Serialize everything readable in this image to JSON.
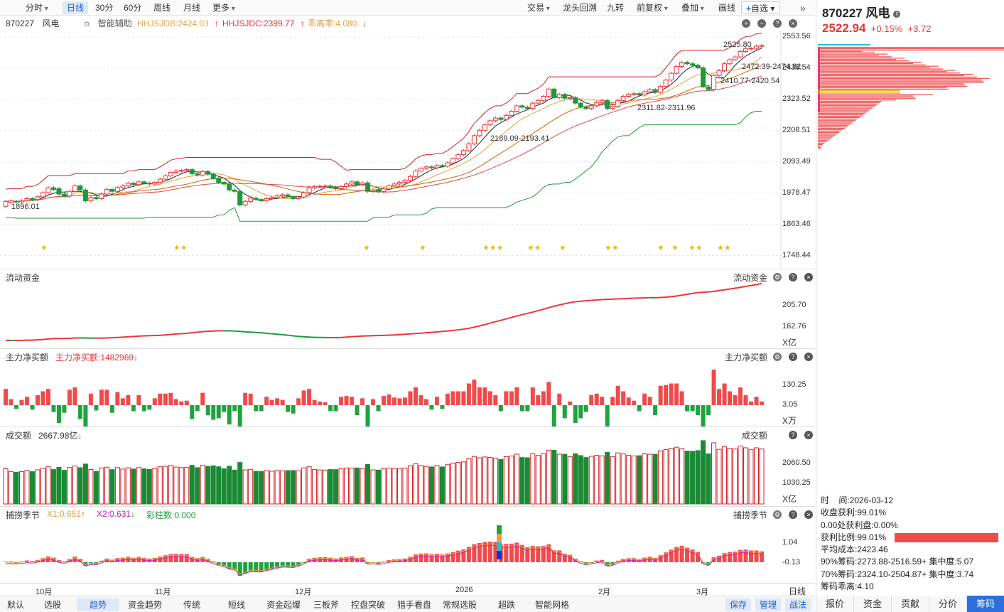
{
  "toolbar": {
    "left": [
      "分时",
      "日线",
      "30分",
      "60分",
      "周线",
      "月线",
      "更多"
    ],
    "selected": "日线",
    "right": [
      "交易",
      "龙头回溯",
      "九转",
      "前复权",
      "叠加",
      "画线",
      "自选"
    ]
  },
  "stock": {
    "code": "870227",
    "name": "风电",
    "price": "2522.94",
    "change_pct": "+0.15%",
    "change": "+3.72"
  },
  "indicator": {
    "mode": "智能辅助",
    "hhjsjdb": "HHJSJDB:2424.03",
    "hhjsjdc": "HHJSJDC:2399.77",
    "ratio": "乖离率:4.080"
  },
  "main_chart": {
    "ylabels": [
      "2553.56",
      "2438.54",
      "2323.52",
      "2208.51",
      "2093.49",
      "1978.47",
      "1863.46",
      "1748.44"
    ],
    "annotations": {
      "high": "2525.80",
      "low": "1896.01",
      "a1": "2472.39-2474.82",
      "a2": "2410.77-2420.54",
      "a3": "2311.82-2311.96",
      "a4": "2189.09-2193.41"
    },
    "ylim": [
      1700,
      2580
    ],
    "candles": [
      [
        1930,
        1948
      ],
      [
        1945,
        1950
      ],
      [
        1948,
        1946
      ],
      [
        1946,
        1950
      ],
      [
        1950,
        1958
      ],
      [
        1958,
        1955
      ],
      [
        1955,
        1965
      ],
      [
        1965,
        1980
      ],
      [
        1980,
        1998
      ],
      [
        1998,
        1992
      ],
      [
        1995,
        1975
      ],
      [
        1975,
        1968
      ],
      [
        1968,
        1985
      ],
      [
        1985,
        2005
      ],
      [
        2005,
        1990
      ],
      [
        1990,
        1950
      ],
      [
        1950,
        1962
      ],
      [
        1962,
        1958
      ],
      [
        1958,
        1975
      ],
      [
        1975,
        1992
      ],
      [
        1992,
        1985
      ],
      [
        1985,
        1999
      ],
      [
        1999,
        2005
      ],
      [
        2005,
        2015
      ],
      [
        2015,
        2010
      ],
      [
        2010,
        2020
      ],
      [
        2020,
        2015
      ],
      [
        2015,
        2012
      ],
      [
        2012,
        2018
      ],
      [
        2018,
        2030
      ],
      [
        2030,
        2042
      ],
      [
        2042,
        2055
      ],
      [
        2055,
        2060
      ],
      [
        2060,
        2062
      ],
      [
        2062,
        2065
      ],
      [
        2065,
        2050
      ],
      [
        2050,
        2045
      ],
      [
        2045,
        2058
      ],
      [
        2058,
        2048
      ],
      [
        2048,
        2032
      ],
      [
        2032,
        2018
      ],
      [
        2018,
        2012
      ],
      [
        2012,
        1990
      ],
      [
        1990,
        1985
      ],
      [
        1985,
        1935
      ],
      [
        1935,
        1948
      ],
      [
        1948,
        1960
      ],
      [
        1960,
        1955
      ],
      [
        1955,
        1950
      ],
      [
        1950,
        1958
      ],
      [
        1958,
        1962
      ],
      [
        1962,
        1968
      ],
      [
        1968,
        1972
      ],
      [
        1972,
        1966
      ],
      [
        1966,
        1958
      ],
      [
        1958,
        1964
      ],
      [
        1964,
        1980
      ],
      [
        1980,
        1998
      ],
      [
        1998,
        2002
      ],
      [
        2002,
        2004
      ],
      [
        2004,
        2005
      ],
      [
        2005,
        2000
      ],
      [
        2000,
        1995
      ],
      [
        1995,
        2003
      ],
      [
        2003,
        2012
      ],
      [
        2012,
        2020
      ],
      [
        2020,
        2010
      ],
      [
        2010,
        2016
      ],
      [
        2016,
        1985
      ],
      [
        1985,
        1990
      ],
      [
        1990,
        1985
      ],
      [
        1985,
        1994
      ],
      [
        1994,
        2005
      ],
      [
        2005,
        2012
      ],
      [
        2012,
        2018
      ],
      [
        2018,
        2025
      ],
      [
        2025,
        2040
      ],
      [
        2040,
        2060
      ],
      [
        2060,
        2070
      ],
      [
        2070,
        2075
      ],
      [
        2075,
        2072
      ],
      [
        2072,
        2080
      ],
      [
        2080,
        2078
      ],
      [
        2078,
        2090
      ],
      [
        2090,
        2105
      ],
      [
        2105,
        2120
      ],
      [
        2120,
        2135
      ],
      [
        2135,
        2160
      ],
      [
        2160,
        2190
      ],
      [
        2190,
        2210
      ],
      [
        2210,
        2230
      ],
      [
        2230,
        2245
      ],
      [
        2245,
        2255
      ],
      [
        2255,
        2250
      ],
      [
        2250,
        2265
      ],
      [
        2265,
        2280
      ],
      [
        2280,
        2300
      ],
      [
        2300,
        2295
      ],
      [
        2295,
        2290
      ],
      [
        2290,
        2310
      ],
      [
        2310,
        2320
      ],
      [
        2320,
        2335
      ],
      [
        2335,
        2362
      ],
      [
        2362,
        2330
      ],
      [
        2330,
        2342
      ],
      [
        2342,
        2328
      ],
      [
        2328,
        2330
      ],
      [
        2330,
        2310
      ],
      [
        2310,
        2296
      ],
      [
        2296,
        2290
      ],
      [
        2290,
        2300
      ],
      [
        2300,
        2312
      ],
      [
        2312,
        2320
      ],
      [
        2320,
        2290
      ],
      [
        2290,
        2298
      ],
      [
        2298,
        2320
      ],
      [
        2320,
        2335
      ],
      [
        2335,
        2342
      ],
      [
        2342,
        2345
      ],
      [
        2345,
        2340
      ],
      [
        2340,
        2352
      ],
      [
        2352,
        2360
      ],
      [
        2360,
        2350
      ],
      [
        2350,
        2372
      ],
      [
        2372,
        2395
      ],
      [
        2395,
        2420
      ],
      [
        2420,
        2445
      ],
      [
        2445,
        2460
      ],
      [
        2460,
        2455
      ],
      [
        2455,
        2450
      ],
      [
        2450,
        2440
      ],
      [
        2440,
        2370
      ],
      [
        2370,
        2360
      ],
      [
        2360,
        2412
      ],
      [
        2412,
        2430
      ],
      [
        2430,
        2455
      ],
      [
        2455,
        2470
      ],
      [
        2470,
        2480
      ],
      [
        2480,
        2500
      ],
      [
        2500,
        2510
      ],
      [
        2510,
        2512
      ],
      [
        2512,
        2520
      ],
      [
        2520,
        2522
      ]
    ],
    "ma": [
      {
        "name": "MA5",
        "color": "#222222"
      },
      {
        "name": "MA10",
        "color": "#e6a23c"
      },
      {
        "name": "MA20",
        "color": "#cc6600"
      },
      {
        "name": "MA30",
        "color": "#d84a4a"
      }
    ],
    "stars_x": [
      63,
      250,
      517,
      596,
      685,
      748,
      793,
      857,
      931,
      951,
      975,
      1015
    ],
    "stars_count": [
      1,
      2,
      1,
      1,
      3,
      2,
      1,
      2,
      1,
      1,
      2,
      2
    ]
  },
  "panels": {
    "flow": {
      "title": "流动资金",
      "ylabels": [
        "205.70",
        "162.76"
      ],
      "unit": "X亿"
    },
    "main_net": {
      "title": "主力净买额",
      "value": "主力净买额:1482969",
      "ylabels": [
        "130.25",
        "3.05"
      ],
      "unit": "X万"
    },
    "turnover": {
      "title": "成交额",
      "value": "2667.98亿",
      "ylabels": [
        "2060.50",
        "1030.25"
      ],
      "unit": "X亿"
    },
    "season": {
      "title": "捕捞季节",
      "x1": "X1:0.651",
      "x2": "X2:0.631",
      "cols": "彩柱数:0.000",
      "ylabels": [
        "1.04",
        "-0.13"
      ]
    }
  },
  "xaxis": {
    "labels": [
      "10月",
      "11月",
      "12月",
      "2026",
      "2月",
      "3月"
    ],
    "period": "日线"
  },
  "bottom": {
    "left": [
      "默认",
      "选股",
      "趋势",
      "资金趋势",
      "传统",
      "短线",
      "资金起爆",
      "三板斧",
      "控盘突破",
      "猎手看盘",
      "常规选股",
      "超跌",
      "智能网格"
    ],
    "selected": "趋势",
    "right": [
      "保存",
      "管理",
      "战法"
    ]
  },
  "right_tabs": [
    "报价",
    "资金",
    "贡献",
    "分价",
    "筹码"
  ],
  "right_selected": "筹码",
  "chips": {
    "time_label": "时",
    "time_value": "间:2026-03-12",
    "profit": "收盘获利:99.01%",
    "zero": "0.00处获利盘:0.00%",
    "ratio": "获利比例:99.01%",
    "avg": "平均成本:2423.46",
    "c90": "90%筹码:2273.88-2516.59+",
    "c90b": "集中度:5.07",
    "c70": "70%筹码:2324.10-2504.87+",
    "c70b": "集中度:3.74",
    "dev": "筹码乖离:4.10"
  }
}
